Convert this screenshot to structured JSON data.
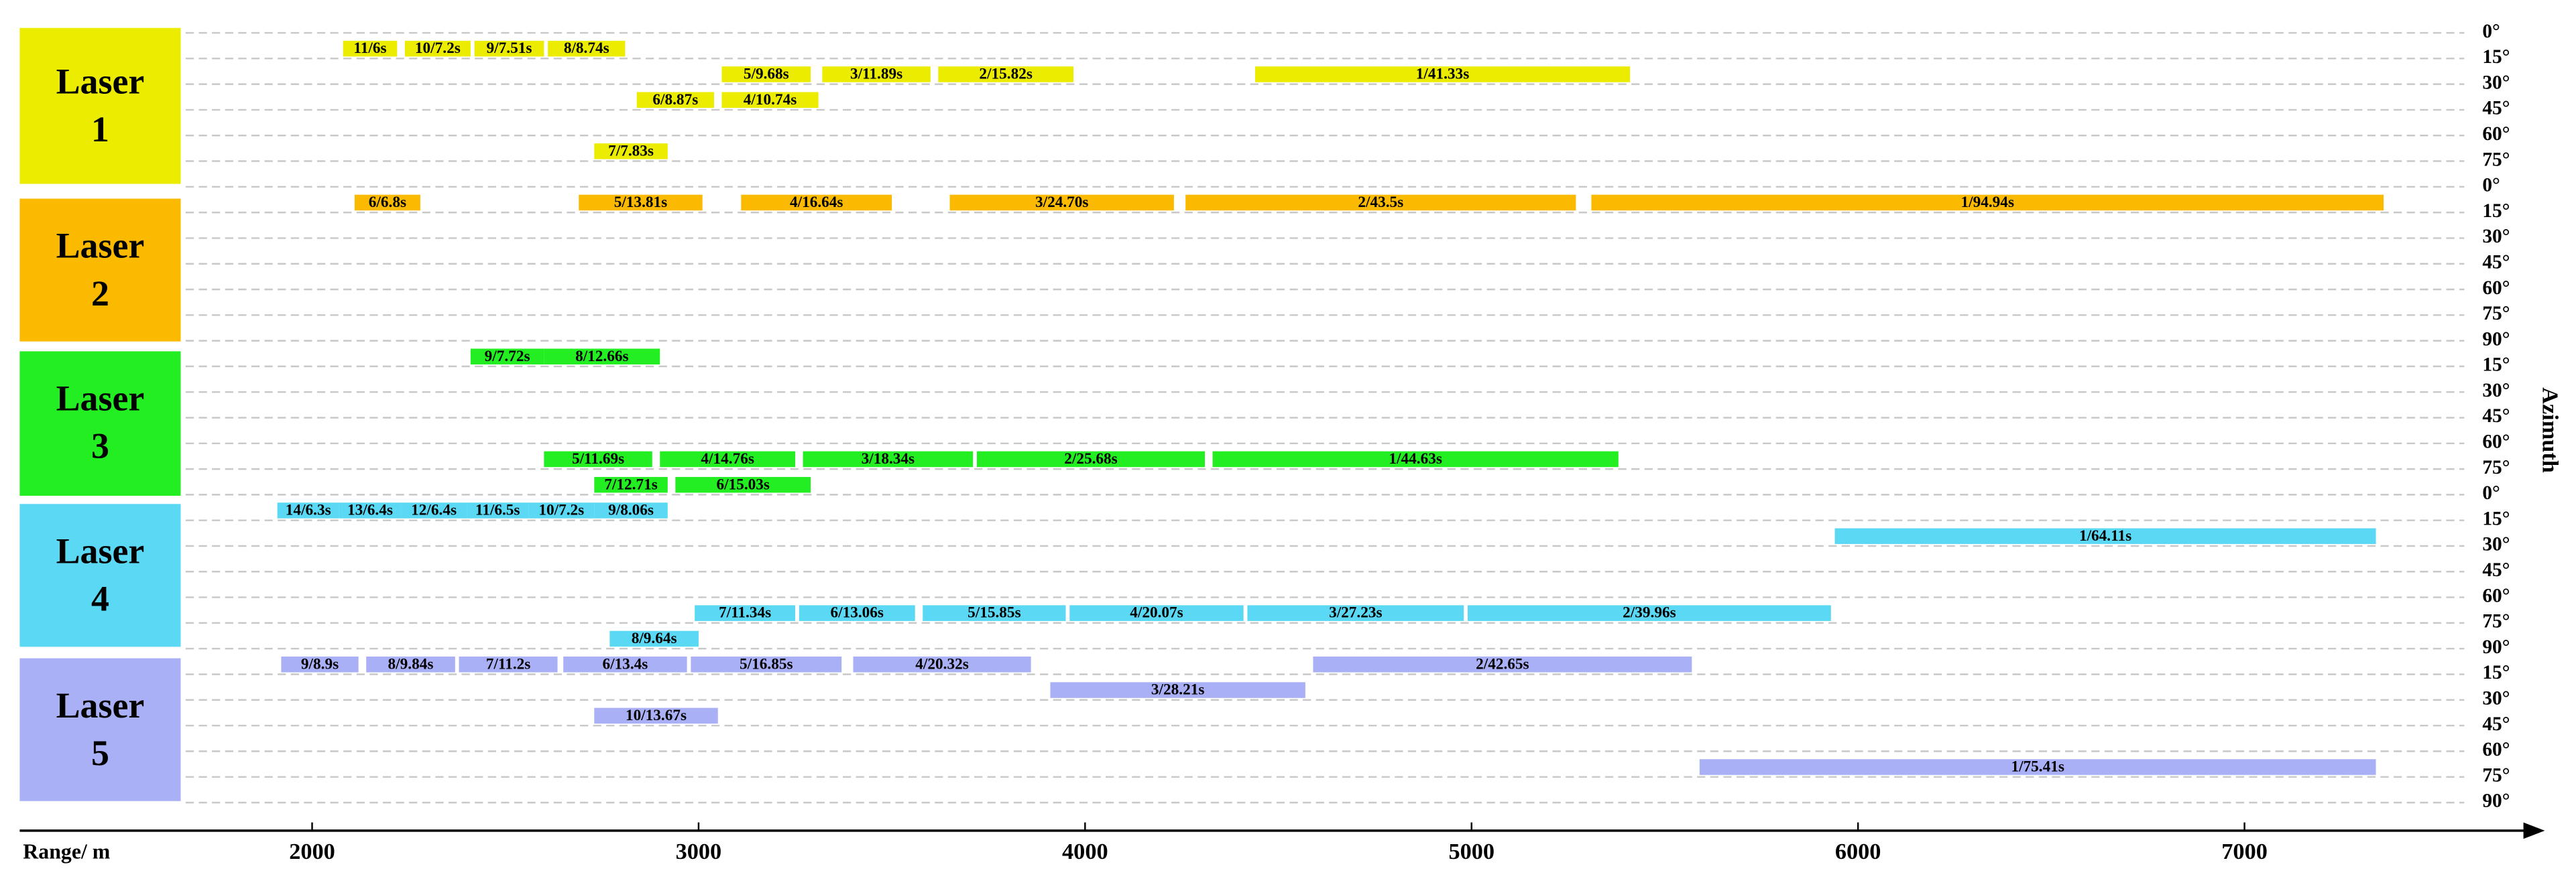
{
  "chart_data": {
    "type": "gantt",
    "x_label": "Range/ m",
    "y_label": "Azimuth",
    "xlim": [
      1660,
      7760
    ],
    "xticks": [
      2000,
      3000,
      4000,
      5000,
      6000,
      7000
    ],
    "lasers": [
      {
        "name": "Laser 1",
        "color": "#ecec00",
        "rows": [
          {
            "label": "0°"
          },
          {
            "label": "15°",
            "bars": [
              {
                "label": "11/6s",
                "start": 2080,
                "end": 2220
              },
              {
                "label": "10/7.2s",
                "start": 2240,
                "end": 2410
              },
              {
                "label": "9/7.51s",
                "start": 2420,
                "end": 2600
              },
              {
                "label": "8/8.74s",
                "start": 2610,
                "end": 2810
              }
            ]
          },
          {
            "label": "30°",
            "bars": [
              {
                "label": "5/9.68s",
                "start": 3060,
                "end": 3290
              },
              {
                "label": "3/11.89s",
                "start": 3320,
                "end": 3600
              },
              {
                "label": "2/15.82s",
                "start": 3620,
                "end": 3970
              },
              {
                "label": "1/41.33s",
                "start": 4440,
                "end": 5410
              }
            ]
          },
          {
            "label": "45°",
            "bars": [
              {
                "label": "6/8.87s",
                "start": 2840,
                "end": 3040
              },
              {
                "label": "4/10.74s",
                "start": 3060,
                "end": 3310
              }
            ]
          },
          {
            "label": "60°"
          },
          {
            "label": "75°",
            "bars": [
              {
                "label": "7/7.83s",
                "start": 2730,
                "end": 2920
              }
            ]
          }
        ]
      },
      {
        "name": "Laser 2",
        "color": "#fbb900",
        "rows": [
          {
            "label": "0°"
          },
          {
            "label": "15°",
            "bars": [
              {
                "label": "6/6.8s",
                "start": 2110,
                "end": 2280
              },
              {
                "label": "5/13.81s",
                "start": 2690,
                "end": 3010
              },
              {
                "label": "4/16.64s",
                "start": 3110,
                "end": 3500
              },
              {
                "label": "3/24.70s",
                "start": 3650,
                "end": 4230
              },
              {
                "label": "2/43.5s",
                "start": 4260,
                "end": 5270
              },
              {
                "label": "1/94.94s",
                "start": 5310,
                "end": 7360
              }
            ]
          },
          {
            "label": "30°"
          },
          {
            "label": "45°"
          },
          {
            "label": "60°"
          },
          {
            "label": "75°"
          },
          {
            "label": "90°"
          }
        ]
      },
      {
        "name": "Laser 3",
        "color": "#22ee22",
        "rows": [
          {
            "label": "15°",
            "bars": [
              {
                "label": "9/7.72s",
                "start": 2410,
                "end": 2600
              },
              {
                "label": "8/12.66s",
                "start": 2600,
                "end": 2900
              }
            ]
          },
          {
            "label": "30°"
          },
          {
            "label": "45°"
          },
          {
            "label": "60°"
          },
          {
            "label": "75°",
            "bars": [
              {
                "label": "5/11.69s",
                "start": 2600,
                "end": 2880
              },
              {
                "label": "4/14.76s",
                "start": 2900,
                "end": 3250
              },
              {
                "label": "3/18.34s",
                "start": 3270,
                "end": 3710
              },
              {
                "label": "2/25.68s",
                "start": 3720,
                "end": 4310
              },
              {
                "label": "1/44.63s",
                "start": 4330,
                "end": 5380
              }
            ]
          },
          {
            "label": "0°",
            "bars": [
              {
                "label": "7/12.71s",
                "start": 2730,
                "end": 2920
              },
              {
                "label": "6/15.03s",
                "start": 2940,
                "end": 3290
              }
            ]
          }
        ]
      },
      {
        "name": "Laser 4",
        "color": "#5ad8f4",
        "rows": [
          {
            "label": "15°",
            "bars": [
              {
                "label": "14/6.3s",
                "start": 1910,
                "end": 2070
              },
              {
                "label": "13/6.4s",
                "start": 2070,
                "end": 2230
              },
              {
                "label": "12/6.4s",
                "start": 2230,
                "end": 2400
              },
              {
                "label": "11/6.5s",
                "start": 2400,
                "end": 2560
              },
              {
                "label": "10/7.2s",
                "start": 2560,
                "end": 2730
              },
              {
                "label": "9/8.06s",
                "start": 2730,
                "end": 2920
              }
            ]
          },
          {
            "label": "30°",
            "bars": [
              {
                "label": "1/64.11s",
                "start": 5940,
                "end": 7340
              }
            ]
          },
          {
            "label": "45°"
          },
          {
            "label": "60°"
          },
          {
            "label": "75°",
            "bars": [
              {
                "label": "7/11.34s",
                "start": 2990,
                "end": 3250
              },
              {
                "label": "6/13.06s",
                "start": 3260,
                "end": 3560
              },
              {
                "label": "5/15.85s",
                "start": 3580,
                "end": 3950
              },
              {
                "label": "4/20.07s",
                "start": 3960,
                "end": 4410
              },
              {
                "label": "3/27.23s",
                "start": 4420,
                "end": 4980
              },
              {
                "label": "2/39.96s",
                "start": 4990,
                "end": 5930
              }
            ]
          },
          {
            "label": "90°",
            "bars": [
              {
                "label": "8/9.64s",
                "start": 2770,
                "end": 3000
              }
            ]
          }
        ]
      },
      {
        "name": "Laser 5",
        "color": "#aab0f6",
        "rows": [
          {
            "label": "15°",
            "bars": [
              {
                "label": "9/8.9s",
                "start": 1920,
                "end": 2120
              },
              {
                "label": "8/9.84s",
                "start": 2140,
                "end": 2370
              },
              {
                "label": "7/11.2s",
                "start": 2380,
                "end": 2635
              },
              {
                "label": "6/13.4s",
                "start": 2650,
                "end": 2970
              },
              {
                "label": "5/16.85s",
                "start": 2980,
                "end": 3370
              },
              {
                "label": "4/20.32s",
                "start": 3400,
                "end": 3860
              },
              {
                "label": "2/42.65s",
                "start": 4590,
                "end": 5570
              }
            ]
          },
          {
            "label": "30°",
            "bars": [
              {
                "label": "3/28.21s",
                "start": 3910,
                "end": 4570
              }
            ]
          },
          {
            "label": "45°",
            "bars": [
              {
                "label": "10/13.67s",
                "start": 2730,
                "end": 3050
              }
            ]
          },
          {
            "label": "60°"
          },
          {
            "label": "75°",
            "bars": [
              {
                "label": "1/75.41s",
                "start": 5590,
                "end": 7340
              }
            ]
          },
          {
            "label": "90°"
          }
        ]
      }
    ]
  }
}
